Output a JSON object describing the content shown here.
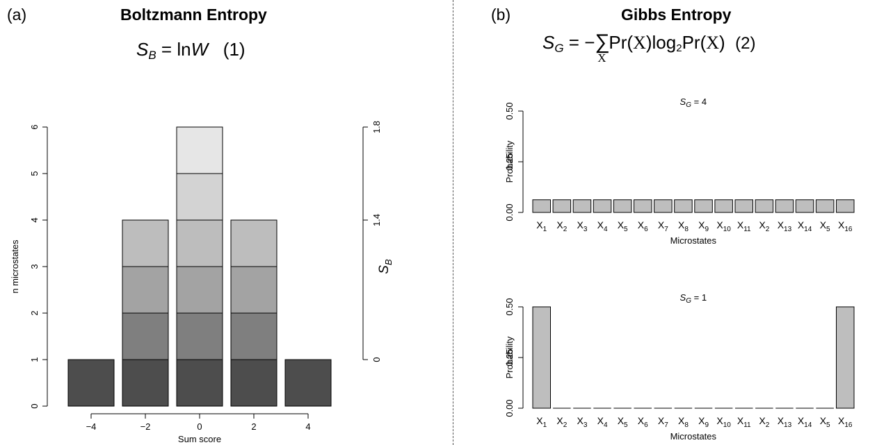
{
  "panel_a": {
    "letter": "(a)",
    "title": "Boltzmann Entropy",
    "eq_number": "(1)"
  },
  "panel_b": {
    "letter": "(b)",
    "title": "Gibbs Entropy",
    "eq_number": "(2)"
  },
  "chart_data": [
    {
      "type": "bar",
      "stacked": true,
      "categories": [
        "−4",
        "−2",
        "0",
        "2",
        "4"
      ],
      "xlabel": "Sum score",
      "ylabel": "n microstates",
      "ylim": [
        0,
        6
      ],
      "yticks": [
        0,
        1,
        2,
        3,
        4,
        5,
        6
      ],
      "values": [
        1,
        4,
        6,
        4,
        1
      ],
      "segment_colors": [
        "#4d4d4d",
        "#7f7f7f",
        "#a3a3a3",
        "#bdbdbd",
        "#d3d3d3",
        "#e6e6e6"
      ],
      "secondary_axis": {
        "label": "S_B",
        "ticks": [
          {
            "label": "0",
            "at_count": 1
          },
          {
            "label": "1.4",
            "at_count": 4
          },
          {
            "label": "1.8",
            "at_count": 6
          }
        ]
      },
      "grid": false
    },
    {
      "type": "bar",
      "subtitle": "S_G = 4",
      "categories": [
        "X1",
        "X2",
        "X3",
        "X4",
        "X5",
        "X6",
        "X7",
        "X8",
        "X9",
        "X10",
        "X11",
        "X2",
        "X13",
        "X14",
        "X5",
        "X16"
      ],
      "values": [
        0.0625,
        0.0625,
        0.0625,
        0.0625,
        0.0625,
        0.0625,
        0.0625,
        0.0625,
        0.0625,
        0.0625,
        0.0625,
        0.0625,
        0.0625,
        0.0625,
        0.0625,
        0.0625
      ],
      "xlabel": "Microstates",
      "ylabel": "Probability",
      "ylim": [
        0,
        0.5
      ],
      "yticks": [
        "0.00",
        "0.25",
        "0.50"
      ],
      "bar_color": "#bebebe",
      "grid": false
    },
    {
      "type": "bar",
      "subtitle": "S_G = 1",
      "categories": [
        "X1",
        "X2",
        "X3",
        "X4",
        "X5",
        "X6",
        "X7",
        "X8",
        "X9",
        "X10",
        "X11",
        "X2",
        "X13",
        "X14",
        "X5",
        "X16"
      ],
      "values": [
        0.5,
        0,
        0,
        0,
        0,
        0,
        0,
        0,
        0,
        0,
        0,
        0,
        0,
        0,
        0,
        0.5
      ],
      "xlabel": "Microstates",
      "ylabel": "Probability",
      "ylim": [
        0,
        0.5
      ],
      "yticks": [
        "0.00",
        "0.25",
        "0.50"
      ],
      "bar_color": "#bebebe",
      "grid": false
    }
  ]
}
